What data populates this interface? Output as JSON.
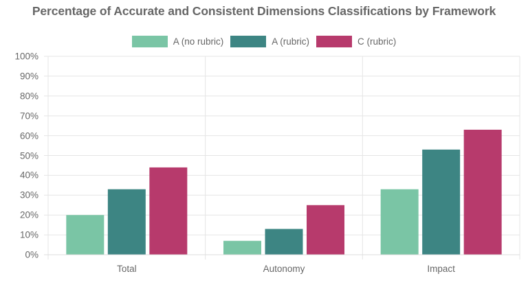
{
  "chart_data": {
    "type": "bar",
    "title": "Percentage of Accurate and Consistent Dimensions Classifications by Framework",
    "categories": [
      "Total",
      "Autonomy",
      "Impact"
    ],
    "series": [
      {
        "name": "A (no rubric)",
        "color": "#7ac5a5",
        "values": [
          20,
          7,
          33
        ]
      },
      {
        "name": "A (rubric)",
        "color": "#3d8583",
        "values": [
          33,
          13,
          53
        ]
      },
      {
        "name": "C (rubric)",
        "color": "#b73a6c",
        "values": [
          44,
          25,
          63
        ]
      }
    ],
    "xlabel": "",
    "ylabel": "",
    "ylim": [
      0,
      100
    ],
    "yticks": [
      "0%",
      "10%",
      "20%",
      "30%",
      "40%",
      "50%",
      "60%",
      "70%",
      "80%",
      "90%",
      "100%"
    ],
    "grid": true,
    "legend_position": "top"
  },
  "legend": {
    "items": [
      {
        "label": "A (no rubric)",
        "color": "#7ac5a5"
      },
      {
        "label": "A (rubric)",
        "color": "#3d8583"
      },
      {
        "label": "C (rubric)",
        "color": "#b73a6c"
      }
    ]
  }
}
